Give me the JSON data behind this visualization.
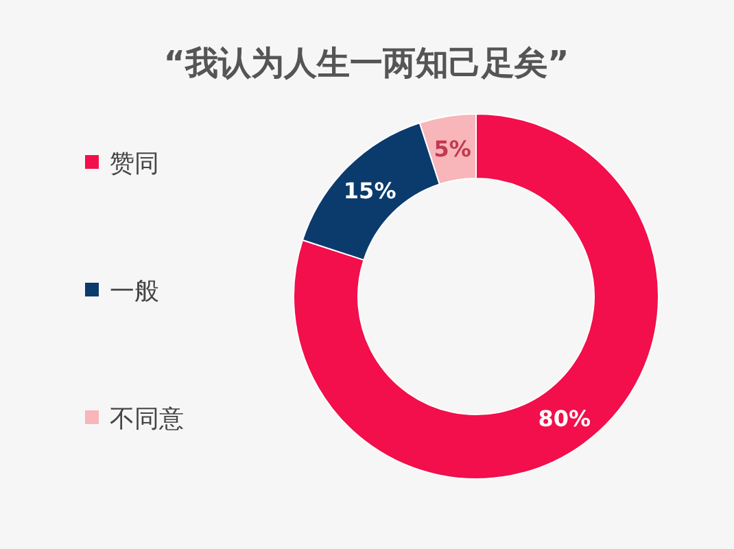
{
  "chart_data": {
    "type": "donut",
    "title": "“我认为人生一两知己足矣”",
    "categories": [
      "赞同",
      "一般",
      "不同意"
    ],
    "values": [
      80,
      15,
      5
    ],
    "colors": [
      "#f20f4b",
      "#0b3b6c",
      "#f8b5ba"
    ],
    "value_labels": [
      "80%",
      "15%",
      "5%"
    ],
    "legend": "left"
  }
}
